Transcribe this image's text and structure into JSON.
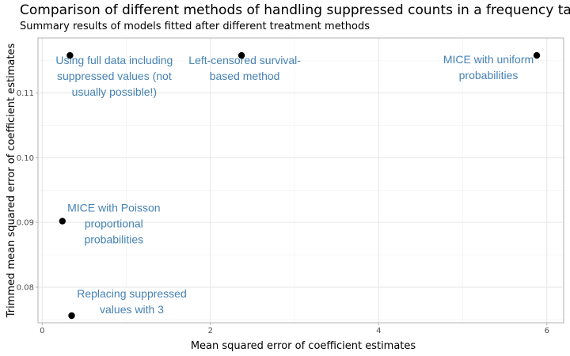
{
  "chart_data": {
    "type": "scatter",
    "title": "Comparison of different methods of handling suppressed counts in a frequency table",
    "subtitle": "Summary results of models fitted after different treatment methods",
    "xlabel": "Mean squared error of coefficient estimates",
    "ylabel": "Trimmed mean squared error of coefficient estimates",
    "xlim": [
      -0.05,
      6.2
    ],
    "ylim": [
      0.0745,
      0.1185
    ],
    "x_ticks": [
      0,
      2,
      4,
      6
    ],
    "y_ticks": [
      0.08,
      0.09,
      0.1,
      0.11
    ],
    "x_tick_labels": [
      "0",
      "2",
      "4",
      "6"
    ],
    "y_tick_labels": [
      "0.08",
      "0.09",
      "0.10",
      "0.11"
    ],
    "grid": true,
    "points": [
      {
        "x": 0.33,
        "y": 0.1158,
        "label_lines": [
          "Using full data including",
          "suppressed values (not",
          "usually possible!)"
        ]
      },
      {
        "x": 2.37,
        "y": 0.1158,
        "label_lines": [
          "Left-censored survival-",
          "based method"
        ]
      },
      {
        "x": 5.88,
        "y": 0.1158,
        "label_lines": [
          "MICE with uniform",
          "probabilities"
        ]
      },
      {
        "x": 0.24,
        "y": 0.0902,
        "label_lines": [
          "MICE with Poisson",
          "proportional",
          "probabilities"
        ]
      },
      {
        "x": 0.35,
        "y": 0.0756,
        "label_lines": [
          "Replacing suppressed",
          "values with 3"
        ]
      }
    ]
  }
}
